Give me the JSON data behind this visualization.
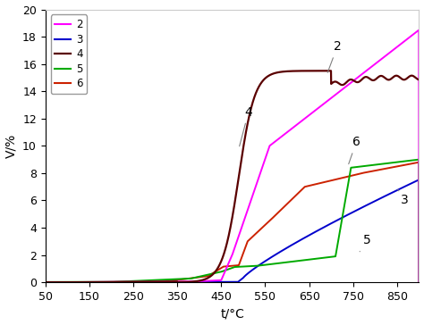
{
  "xlabel": "t/°C",
  "ylabel": "V/%",
  "xlim": [
    50,
    900
  ],
  "ylim": [
    0,
    20
  ],
  "xticks": [
    50,
    150,
    250,
    350,
    450,
    550,
    650,
    750,
    850
  ],
  "yticks": [
    0,
    2,
    4,
    6,
    8,
    10,
    12,
    14,
    16,
    18,
    20
  ],
  "series": {
    "2": {
      "color": "#ff00ff",
      "lw": 1.4
    },
    "3": {
      "color": "#0000cc",
      "lw": 1.4
    },
    "4": {
      "color": "#5a0000",
      "lw": 1.6
    },
    "5": {
      "color": "#00aa00",
      "lw": 1.4
    },
    "6": {
      "color": "#cc2200",
      "lw": 1.4
    }
  },
  "background_color": "#ffffff"
}
